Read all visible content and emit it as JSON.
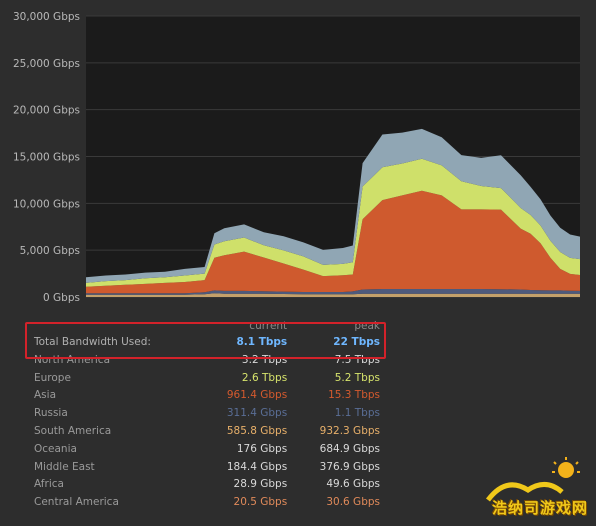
{
  "chart_data": {
    "type": "area",
    "stacked": true,
    "ylim": [
      0,
      30000
    ],
    "y_ticks": [
      "0 Gbps",
      "5,000 Gbps",
      "10,000 Gbps",
      "15,000 Gbps",
      "20,000 Gbps",
      "25,000 Gbps",
      "30,000 Gbps"
    ],
    "y_tick_values": [
      0,
      5000,
      10000,
      15000,
      20000,
      25000,
      30000
    ],
    "grid": true,
    "x": [
      0,
      4,
      8,
      12,
      16,
      20,
      24,
      26,
      28,
      32,
      36,
      40,
      44,
      48,
      52,
      54,
      56,
      60,
      64,
      68,
      72,
      76,
      80,
      84,
      88,
      90,
      92,
      94,
      96,
      98,
      100
    ],
    "series": [
      {
        "color": "#c3a06a",
        "values": [
          250,
          250,
          250,
          250,
          250,
          250,
          300,
          400,
          350,
          350,
          340,
          320,
          300,
          300,
          300,
          300,
          350,
          350,
          350,
          350,
          350,
          350,
          350,
          350,
          350,
          350,
          350,
          350,
          350,
          350,
          350
        ]
      },
      {
        "color": "#4e5a7c",
        "values": [
          150,
          150,
          150,
          150,
          150,
          150,
          200,
          300,
          300,
          300,
          280,
          260,
          230,
          230,
          230,
          300,
          450,
          500,
          500,
          500,
          500,
          500,
          500,
          480,
          450,
          400,
          380,
          350,
          350,
          320,
          300
        ]
      },
      {
        "color": "#cf5a2e",
        "values": [
          700,
          800,
          900,
          1000,
          1100,
          1200,
          1300,
          3500,
          3800,
          4200,
          3600,
          3000,
          2400,
          1700,
          1800,
          1800,
          7500,
          9500,
          10000,
          10500,
          10000,
          8500,
          8500,
          8500,
          6500,
          6000,
          5000,
          3500,
          2300,
          1800,
          1700
        ]
      },
      {
        "color": "#cfe06a",
        "values": [
          400,
          500,
          500,
          600,
          600,
          700,
          700,
          1400,
          1500,
          1500,
          1300,
          1400,
          1400,
          1200,
          1200,
          1300,
          3500,
          3500,
          3400,
          3400,
          3200,
          3000,
          2500,
          2300,
          2200,
          2000,
          1900,
          1800,
          1800,
          1700,
          1700
        ]
      },
      {
        "color": "#90a6b4",
        "values": [
          600,
          600,
          600,
          600,
          600,
          700,
          700,
          1200,
          1400,
          1400,
          1400,
          1500,
          1500,
          1600,
          1700,
          1800,
          2500,
          3500,
          3300,
          3200,
          3000,
          2800,
          3000,
          3500,
          3500,
          3000,
          2800,
          2700,
          2600,
          2500,
          2400
        ]
      }
    ]
  },
  "table": {
    "headers": {
      "current": "current",
      "peak": "peak"
    },
    "total": {
      "label": "Total Bandwidth Used:",
      "current": "8.1 Tbps",
      "peak": "22 Tbps"
    },
    "rows": [
      {
        "region": "North America",
        "current": "3.2 Tbps",
        "peak": "7.5 Tbps",
        "color": "#d9d9d9"
      },
      {
        "region": "Europe",
        "current": "2.6 Tbps",
        "peak": "5.2 Tbps",
        "color": "#d7e46c"
      },
      {
        "region": "Asia",
        "current": "961.4 Gbps",
        "peak": "15.3 Tbps",
        "color": "#d45a2e"
      },
      {
        "region": "Russia",
        "current": "311.4 Gbps",
        "peak": "1.1 Tbps",
        "color": "#5a6e96"
      },
      {
        "region": "South America",
        "current": "585.8 Gbps",
        "peak": "932.3 Gbps",
        "color": "#e8b06a"
      },
      {
        "region": "Oceania",
        "current": "176 Gbps",
        "peak": "684.9 Gbps",
        "color": "#d9d9d9"
      },
      {
        "region": "Middle East",
        "current": "184.4 Gbps",
        "peak": "376.9 Gbps",
        "color": "#d9d9d9"
      },
      {
        "region": "Africa",
        "current": "28.9 Gbps",
        "peak": "49.6 Gbps",
        "color": "#d9d9d9"
      },
      {
        "region": "Central America",
        "current": "20.5 Gbps",
        "peak": "30.6 Gbps",
        "color": "#e08a5a"
      }
    ]
  },
  "watermark": {
    "text": "浩纳司游戏网"
  }
}
